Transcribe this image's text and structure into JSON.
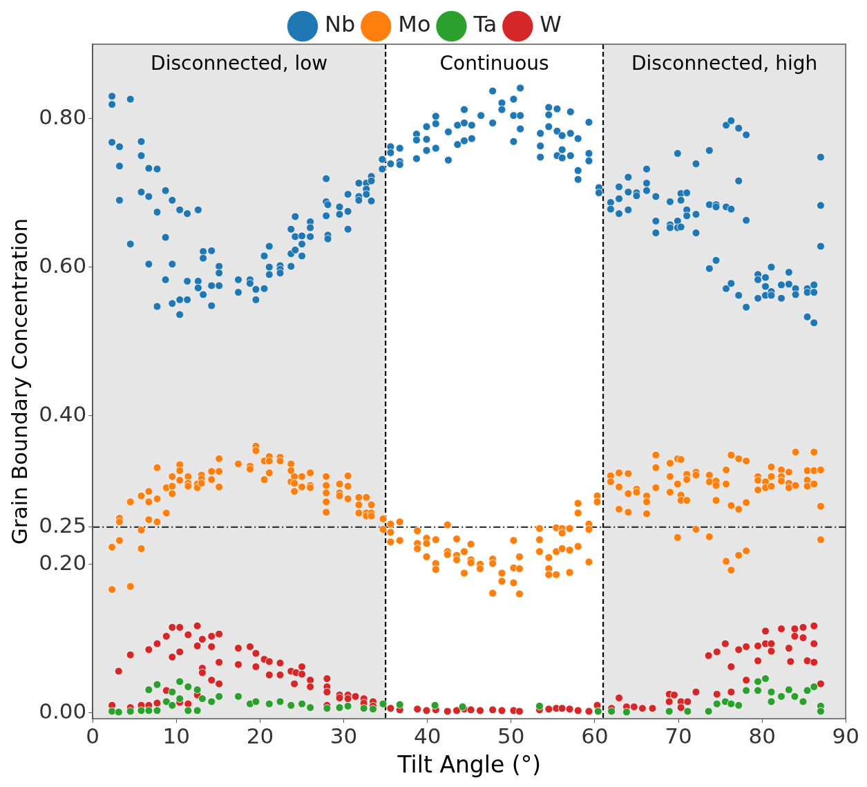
{
  "chart_data": {
    "type": "scatter",
    "xlabel": "Tilt Angle (°)",
    "ylabel": "Grain Boundary Concentration",
    "xlim": [
      0,
      90
    ],
    "xticks": [
      0,
      10,
      20,
      30,
      40,
      50,
      60,
      70,
      80,
      90
    ],
    "ylim": [
      -0.008,
      0.9
    ],
    "yticks": [
      {
        "value": 0,
        "label": "0.00"
      },
      {
        "value": 0.2,
        "label": "0.20"
      },
      {
        "value": 0.25,
        "label": "0.25"
      },
      {
        "value": 0.4,
        "label": "0.40"
      },
      {
        "value": 0.6,
        "label": "0.60"
      },
      {
        "value": 0.8,
        "label": "0.80"
      }
    ],
    "grid": false,
    "legend": "top",
    "marker": "circle",
    "bands": [
      {
        "axis": "x",
        "from": 0,
        "to": 35,
        "label": "Disconnected, low",
        "color": "#e6e6e6"
      },
      {
        "axis": "x",
        "from": 35,
        "to": 61,
        "label": "Continuous",
        "color": "#ffffff"
      },
      {
        "axis": "x",
        "from": 61,
        "to": 90,
        "label": "Disconnected, high",
        "color": "#e6e6e6"
      }
    ],
    "ref_lines": [
      {
        "axis": "x",
        "value": 35,
        "line_style": "dashed",
        "color": "#000000"
      },
      {
        "axis": "x",
        "value": 61,
        "line_style": "dashed",
        "color": "#000000"
      },
      {
        "axis": "y",
        "value": 0.25,
        "line_style": "dashdot",
        "color": "#333333"
      }
    ],
    "series": [
      {
        "name": "Nb",
        "color": "#1f77b4",
        "x": [
          2.3,
          4.5,
          2.3,
          2.3,
          3.2,
          5.8,
          3.2,
          5.8,
          6.7,
          7.7,
          5.8,
          3.2,
          6.7,
          8.7,
          9.5,
          7.7,
          10.4,
          11.3,
          12.6,
          4.5,
          8.7,
          6.7,
          9.5,
          13.2,
          14.2,
          13.2,
          15.1,
          15.1,
          8.7,
          11.3,
          12.6,
          12.6,
          14.2,
          15.1,
          13.2,
          7.7,
          9.5,
          10.4,
          11.3,
          10.4,
          14.2,
          17.4,
          17.4,
          18.8,
          18.8,
          19.5,
          19.5,
          20.5,
          20.5,
          21.1,
          21.1,
          21.1,
          22.4,
          22.4,
          22.4,
          23.7,
          23.7,
          24.2,
          25,
          24.2,
          25,
          26,
          23.7,
          24.2,
          26,
          26,
          25,
          27.9,
          27.9,
          28.1,
          27.9,
          28.1,
          28.1,
          29.5,
          29.5,
          30.5,
          30.5,
          30.5,
          31.8,
          31.8,
          31.8,
          32.7,
          32.7,
          32.7,
          33.3,
          33.3,
          33.3,
          34.6,
          34.6,
          35.6,
          35.6,
          35.6,
          36.7,
          36.7,
          36.7,
          38.7,
          38.7,
          38.7,
          39.9,
          39.9,
          39.9,
          41,
          41,
          41,
          42.5,
          42.5,
          43.6,
          43.6,
          44.4,
          44.4,
          44.4,
          45.3,
          45.3,
          46.4,
          47.8,
          47.8,
          48.9,
          48.9,
          50.3,
          50.3,
          50.3,
          51.1,
          51.1,
          51.1,
          53.5,
          53.5,
          53.5,
          54.5,
          54.5,
          54.5,
          55.5,
          55.5,
          55.5,
          56.1,
          56.1,
          56.1,
          57.1,
          57.1,
          57.1,
          58,
          58,
          58,
          59.3,
          59.3,
          59.3,
          60.5,
          60.5,
          61.9,
          61.9,
          62.9,
          62.9,
          62.9,
          64,
          64,
          64,
          65,
          65,
          66.2,
          66.2,
          66.2,
          67.3,
          67.3,
          67.3,
          69,
          69,
          69,
          69.9,
          69.9,
          69.9,
          70.3,
          70.3,
          70.3,
          71,
          71,
          71,
          72.1,
          72.1,
          72.1,
          73.7,
          73.7,
          73.7,
          74.5,
          74.5,
          74.5,
          75.7,
          75.7,
          75.7,
          76.3,
          76.3,
          76.3,
          77.2,
          77.2,
          77.2,
          78.1,
          78.1,
          78.1,
          79.5,
          79.5,
          79.5,
          80.4,
          80.4,
          80.4,
          81.1,
          81.1,
          81.1,
          82.3,
          82.3,
          83.2,
          83.2,
          84,
          84,
          85.4,
          85.4,
          85.4,
          86.2,
          86.2,
          86.2,
          87,
          87,
          87
        ],
        "values": [
          0.83,
          0.826,
          0.819,
          0.768,
          0.762,
          0.769,
          0.736,
          0.75,
          0.733,
          0.732,
          0.701,
          0.69,
          0.695,
          0.703,
          0.69,
          0.674,
          0.677,
          0.672,
          0.677,
          0.631,
          0.64,
          0.604,
          0.604,
          0.621,
          0.622,
          0.612,
          0.601,
          0.592,
          0.583,
          0.581,
          0.581,
          0.572,
          0.575,
          0.575,
          0.563,
          0.547,
          0.551,
          0.556,
          0.556,
          0.536,
          0.548,
          0.583,
          0.566,
          0.583,
          0.578,
          0.57,
          0.556,
          0.571,
          0.615,
          0.628,
          0.6,
          0.59,
          0.602,
          0.597,
          0.592,
          0.601,
          0.618,
          0.623,
          0.615,
          0.641,
          0.642,
          0.641,
          0.651,
          0.668,
          0.661,
          0.653,
          0.631,
          0.719,
          0.688,
          0.684,
          0.669,
          0.643,
          0.638,
          0.681,
          0.671,
          0.698,
          0.675,
          0.651,
          0.713,
          0.695,
          0.69,
          0.713,
          0.705,
          0.698,
          0.722,
          0.716,
          0.689,
          0.745,
          0.732,
          0.762,
          0.754,
          0.739,
          0.76,
          0.742,
          0.738,
          0.779,
          0.771,
          0.746,
          0.789,
          0.772,
          0.757,
          0.803,
          0.793,
          0.76,
          0.782,
          0.744,
          0.791,
          0.765,
          0.812,
          0.794,
          0.77,
          0.791,
          0.773,
          0.804,
          0.837,
          0.794,
          0.821,
          0.812,
          0.826,
          0.804,
          0.769,
          0.841,
          0.804,
          0.786,
          0.78,
          0.763,
          0.748,
          0.815,
          0.805,
          0.789,
          0.813,
          0.783,
          0.75,
          0.777,
          0.758,
          0.747,
          0.809,
          0.78,
          0.75,
          0.773,
          0.73,
          0.718,
          0.795,
          0.753,
          0.743,
          0.707,
          0.7,
          0.687,
          0.678,
          0.708,
          0.692,
          0.672,
          0.721,
          0.701,
          0.677,
          0.7,
          0.696,
          0.732,
          0.713,
          0.703,
          0.695,
          0.662,
          0.646,
          0.688,
          0.657,
          0.653,
          0.753,
          0.662,
          0.653,
          0.699,
          0.69,
          0.654,
          0.7,
          0.677,
          0.669,
          0.739,
          0.671,
          0.646,
          0.757,
          0.684,
          0.598,
          0.684,
          0.681,
          0.609,
          0.791,
          0.681,
          0.571,
          0.797,
          0.678,
          0.578,
          0.787,
          0.716,
          0.562,
          0.778,
          0.663,
          0.546,
          0.59,
          0.583,
          0.558,
          0.586,
          0.574,
          0.562,
          0.6,
          0.567,
          0.562,
          0.576,
          0.558,
          0.593,
          0.577,
          0.571,
          0.563,
          0.571,
          0.566,
          0.533,
          0.576,
          0.566,
          0.525,
          0.748,
          0.683,
          0.628
        ]
      },
      {
        "name": "Mo",
        "color": "#ff7f0e",
        "x": [
          2.3,
          2.3,
          3.2,
          3.2,
          3.2,
          4.5,
          4.5,
          5.8,
          5.8,
          5.8,
          6.7,
          6.7,
          6.7,
          7.7,
          7.7,
          7.7,
          8.8,
          8.8,
          9.5,
          9.5,
          9.5,
          10.4,
          10.4,
          10.4,
          11.4,
          11.4,
          11.4,
          12.5,
          12.5,
          13,
          13,
          13,
          14.2,
          14.2,
          15.1,
          15.1,
          15.1,
          17.4,
          18.8,
          18.8,
          19.5,
          19.5,
          20.5,
          20.5,
          21.1,
          21.1,
          21.1,
          22.4,
          22.4,
          23.7,
          23.7,
          23.7,
          24.1,
          24.1,
          24.1,
          25,
          25,
          26,
          26,
          26,
          27.9,
          27.9,
          27.9,
          27.9,
          27.9,
          29.5,
          29.5,
          29.5,
          30.5,
          30.5,
          30.5,
          31.8,
          31.8,
          31.8,
          32.7,
          32.7,
          32.7,
          33.3,
          33.3,
          33.3,
          34.7,
          34.7,
          35.6,
          35.6,
          35.6,
          36.7,
          36.7,
          38.8,
          38.8,
          38.8,
          39.9,
          39.9,
          39.9,
          41,
          41,
          41,
          42.4,
          42.4,
          42.4,
          43.5,
          43.5,
          43.5,
          44.4,
          44.4,
          45.2,
          45.2,
          45.2,
          46.3,
          46.3,
          47.8,
          47.8,
          47.8,
          48.9,
          48.9,
          50.3,
          50.3,
          50.3,
          51,
          51,
          51,
          53.4,
          53.4,
          53.4,
          54.5,
          54.5,
          54.5,
          55.4,
          55.4,
          55.4,
          56.1,
          56.1,
          56.1,
          57,
          57,
          57,
          58,
          58,
          58,
          59.3,
          59.3,
          59.3,
          60.3,
          60.3,
          61.9,
          61.9,
          62.9,
          62.9,
          62.9,
          64,
          64,
          64,
          65,
          65,
          66.2,
          66.2,
          66.2,
          67.3,
          67.3,
          67.3,
          69,
          69,
          69,
          69.9,
          69.9,
          69.9,
          70.3,
          70.3,
          70.3,
          71,
          71,
          71,
          72.1,
          72.1,
          72.1,
          73.7,
          73.7,
          73.7,
          74.5,
          74.5,
          74.5,
          75.7,
          75.7,
          75.7,
          76.3,
          76.3,
          76.3,
          77.2,
          77.2,
          77.2,
          78.1,
          78.1,
          78.1,
          79.5,
          79.5,
          79.5,
          80.4,
          80.4,
          81.1,
          81.1,
          81.1,
          82.3,
          82.3,
          82.3,
          83.2,
          83.2,
          83.2,
          84,
          84,
          85.4,
          85.4,
          85.4,
          86.2,
          86.2,
          86.2,
          87,
          87,
          87
        ],
        "values": [
          0.223,
          0.166,
          0.262,
          0.257,
          0.232,
          0.284,
          0.17,
          0.292,
          0.246,
          0.221,
          0.298,
          0.284,
          0.26,
          0.33,
          0.288,
          0.257,
          0.303,
          0.269,
          0.318,
          0.305,
          0.295,
          0.334,
          0.326,
          0.313,
          0.318,
          0.309,
          0.305,
          0.308,
          0.303,
          0.32,
          0.315,
          0.309,
          0.325,
          0.314,
          0.342,
          0.325,
          0.304,
          0.335,
          0.332,
          0.328,
          0.359,
          0.353,
          0.339,
          0.314,
          0.345,
          0.339,
          0.323,
          0.344,
          0.339,
          0.335,
          0.326,
          0.311,
          0.318,
          0.309,
          0.298,
          0.318,
          0.304,
          0.323,
          0.306,
          0.303,
          0.318,
          0.306,
          0.296,
          0.284,
          0.27,
          0.308,
          0.296,
          0.292,
          0.319,
          0.305,
          0.288,
          0.29,
          0.28,
          0.269,
          0.29,
          0.269,
          0.265,
          0.28,
          0.269,
          0.265,
          0.261,
          0.247,
          0.254,
          0.243,
          0.23,
          0.257,
          0.232,
          0.245,
          0.228,
          0.221,
          0.235,
          0.228,
          0.21,
          0.233,
          0.201,
          0.193,
          0.253,
          0.217,
          0.213,
          0.234,
          0.212,
          0.206,
          0.217,
          0.188,
          0.227,
          0.206,
          0.202,
          0.2,
          0.194,
          0.207,
          0.201,
          0.161,
          0.188,
          0.177,
          0.232,
          0.195,
          0.175,
          0.21,
          0.194,
          0.16,
          0.248,
          0.233,
          0.217,
          0.209,
          0.194,
          0.186,
          0.249,
          0.217,
          0.186,
          0.248,
          0.242,
          0.221,
          0.248,
          0.219,
          0.189,
          0.282,
          0.269,
          0.224,
          0.254,
          0.247,
          0.203,
          0.292,
          0.284,
          0.319,
          0.311,
          0.323,
          0.304,
          0.274,
          0.322,
          0.295,
          0.27,
          0.301,
          0.297,
          0.292,
          0.284,
          0.268,
          0.347,
          0.33,
          0.303,
          0.336,
          0.318,
          0.297,
          0.342,
          0.308,
          0.236,
          0.341,
          0.293,
          0.286,
          0.321,
          0.314,
          0.286,
          0.324,
          0.32,
          0.247,
          0.32,
          0.311,
          0.237,
          0.312,
          0.306,
          0.286,
          0.327,
          0.308,
          0.204,
          0.347,
          0.279,
          0.192,
          0.342,
          0.274,
          0.212,
          0.339,
          0.283,
          0.218,
          0.318,
          0.313,
          0.3,
          0.311,
          0.303,
          0.331,
          0.318,
          0.305,
          0.327,
          0.318,
          0.312,
          0.324,
          0.309,
          0.303,
          0.351,
          0.306,
          0.326,
          0.313,
          0.305,
          0.351,
          0.326,
          0.308,
          0.327,
          0.278,
          0.233
        ]
      },
      {
        "name": "Ta",
        "color": "#2ca02c",
        "x": [
          2.3,
          3.1,
          4.5,
          5.8,
          6.7,
          6.7,
          7.7,
          7.7,
          8.8,
          9.5,
          9.5,
          10.4,
          10.4,
          11.4,
          11.4,
          12.5,
          12.5,
          13.1,
          14.2,
          15.1,
          17.4,
          18.8,
          19.5,
          21.1,
          22.4,
          23.7,
          25,
          26,
          28,
          29.5,
          30.5,
          32.4,
          33.5,
          34.7,
          36.7,
          40.9,
          44.2,
          53.4,
          60.4,
          62,
          63.8,
          68.9,
          71.1,
          73.6,
          74.6,
          75.6,
          76.3,
          77.2,
          78.1,
          79.5,
          79.5,
          80.4,
          81.1,
          81.1,
          82.3,
          83.2,
          83.9,
          84.9,
          85.4,
          86.2,
          87,
          87
        ],
        "values": [
          0.002,
          0.001,
          0.002,
          0.003,
          0.031,
          0.003,
          0.038,
          0.003,
          0.015,
          0.028,
          0.01,
          0.042,
          0.019,
          0.035,
          0.003,
          0.031,
          0.003,
          0.019,
          0.015,
          0.022,
          0.022,
          0.012,
          0.015,
          0.012,
          0.015,
          0.01,
          0.012,
          0.007,
          0.006,
          0.007,
          0.009,
          0.006,
          0.005,
          0.012,
          0.011,
          0.01,
          0.008,
          0.009,
          0.002,
          0.002,
          0.001,
          0.002,
          0.002,
          0.002,
          0.012,
          0.015,
          0.012,
          0.01,
          0.03,
          0.042,
          0.03,
          0.046,
          0.028,
          0.015,
          0.022,
          0.031,
          0.022,
          0.015,
          0.03,
          0.035,
          0.009,
          0.002
        ]
      },
      {
        "name": "W",
        "color": "#d62728",
        "x": [
          2.3,
          3.1,
          4.5,
          4.5,
          5.8,
          6.7,
          6.7,
          7.7,
          7.7,
          8.8,
          8.8,
          9.5,
          9.5,
          10.4,
          10.4,
          10.4,
          11.4,
          11.4,
          12.5,
          12.5,
          12.5,
          13.1,
          13.1,
          13.1,
          14.2,
          14.2,
          14.2,
          15.1,
          15.1,
          15.1,
          17.4,
          17.4,
          18.8,
          19.5,
          19.5,
          20.5,
          21.1,
          21.1,
          22.4,
          22.4,
          23.7,
          24.1,
          24.3,
          25,
          25,
          26,
          26,
          28,
          28,
          28,
          28,
          29.5,
          29.5,
          30.5,
          30.5,
          31.4,
          32.4,
          32.4,
          33.5,
          33.5,
          35.6,
          36.7,
          38.8,
          39.9,
          41,
          42.4,
          43.5,
          44.4,
          45.2,
          46.3,
          47.8,
          48.9,
          50.3,
          51,
          53.4,
          54.5,
          55.4,
          56.1,
          57,
          58,
          59.3,
          60.3,
          62,
          62.9,
          63.8,
          64.7,
          65.7,
          66.9,
          68.9,
          68.9,
          69.5,
          70.3,
          70.3,
          71.1,
          72.1,
          73.6,
          74.6,
          74.6,
          75.6,
          76.3,
          76.3,
          77.2,
          78.1,
          78.1,
          79.5,
          79.5,
          80.4,
          80.4,
          81.1,
          81.1,
          82.3,
          83.2,
          83.4,
          83.9,
          83.9,
          84.9,
          84.9,
          85.4,
          86.2,
          86.2,
          86.2,
          87
        ],
        "values": [
          0.01,
          0.056,
          0.078,
          0.007,
          0.01,
          0.085,
          0.01,
          0.093,
          0.013,
          0.103,
          0.03,
          0.115,
          0.075,
          0.115,
          0.082,
          0.014,
          0.105,
          0.012,
          0.117,
          0.09,
          0.024,
          0.099,
          0.06,
          0.054,
          0.103,
          0.089,
          0.044,
          0.106,
          0.068,
          0.039,
          0.087,
          0.065,
          0.089,
          0.08,
          0.062,
          0.072,
          0.069,
          0.051,
          0.067,
          0.051,
          0.056,
          0.039,
          0.054,
          0.062,
          0.052,
          0.044,
          0.035,
          0.046,
          0.035,
          0.028,
          0.01,
          0.024,
          0.02,
          0.024,
          0.019,
          0.022,
          0.019,
          0.013,
          0.015,
          0.009,
          0.006,
          0.004,
          0.005,
          0.003,
          0.004,
          0.002,
          0.003,
          0.005,
          0.004,
          0.003,
          0.004,
          0.003,
          0.003,
          0.002,
          0.004,
          0.005,
          0.006,
          0.006,
          0.005,
          0.003,
          0.002,
          0.01,
          0.006,
          0.02,
          0.008,
          0.008,
          0.006,
          0.006,
          0.025,
          0.015,
          0.024,
          0.015,
          0.007,
          0.015,
          0.028,
          0.077,
          0.082,
          0.025,
          0.093,
          0.062,
          0.028,
          0.085,
          0.089,
          0.044,
          0.09,
          0.07,
          0.11,
          0.093,
          0.093,
          0.083,
          0.113,
          0.087,
          0.069,
          0.113,
          0.103,
          0.115,
          0.101,
          0.07,
          0.117,
          0.093,
          0.068,
          0.039
        ]
      }
    ]
  }
}
